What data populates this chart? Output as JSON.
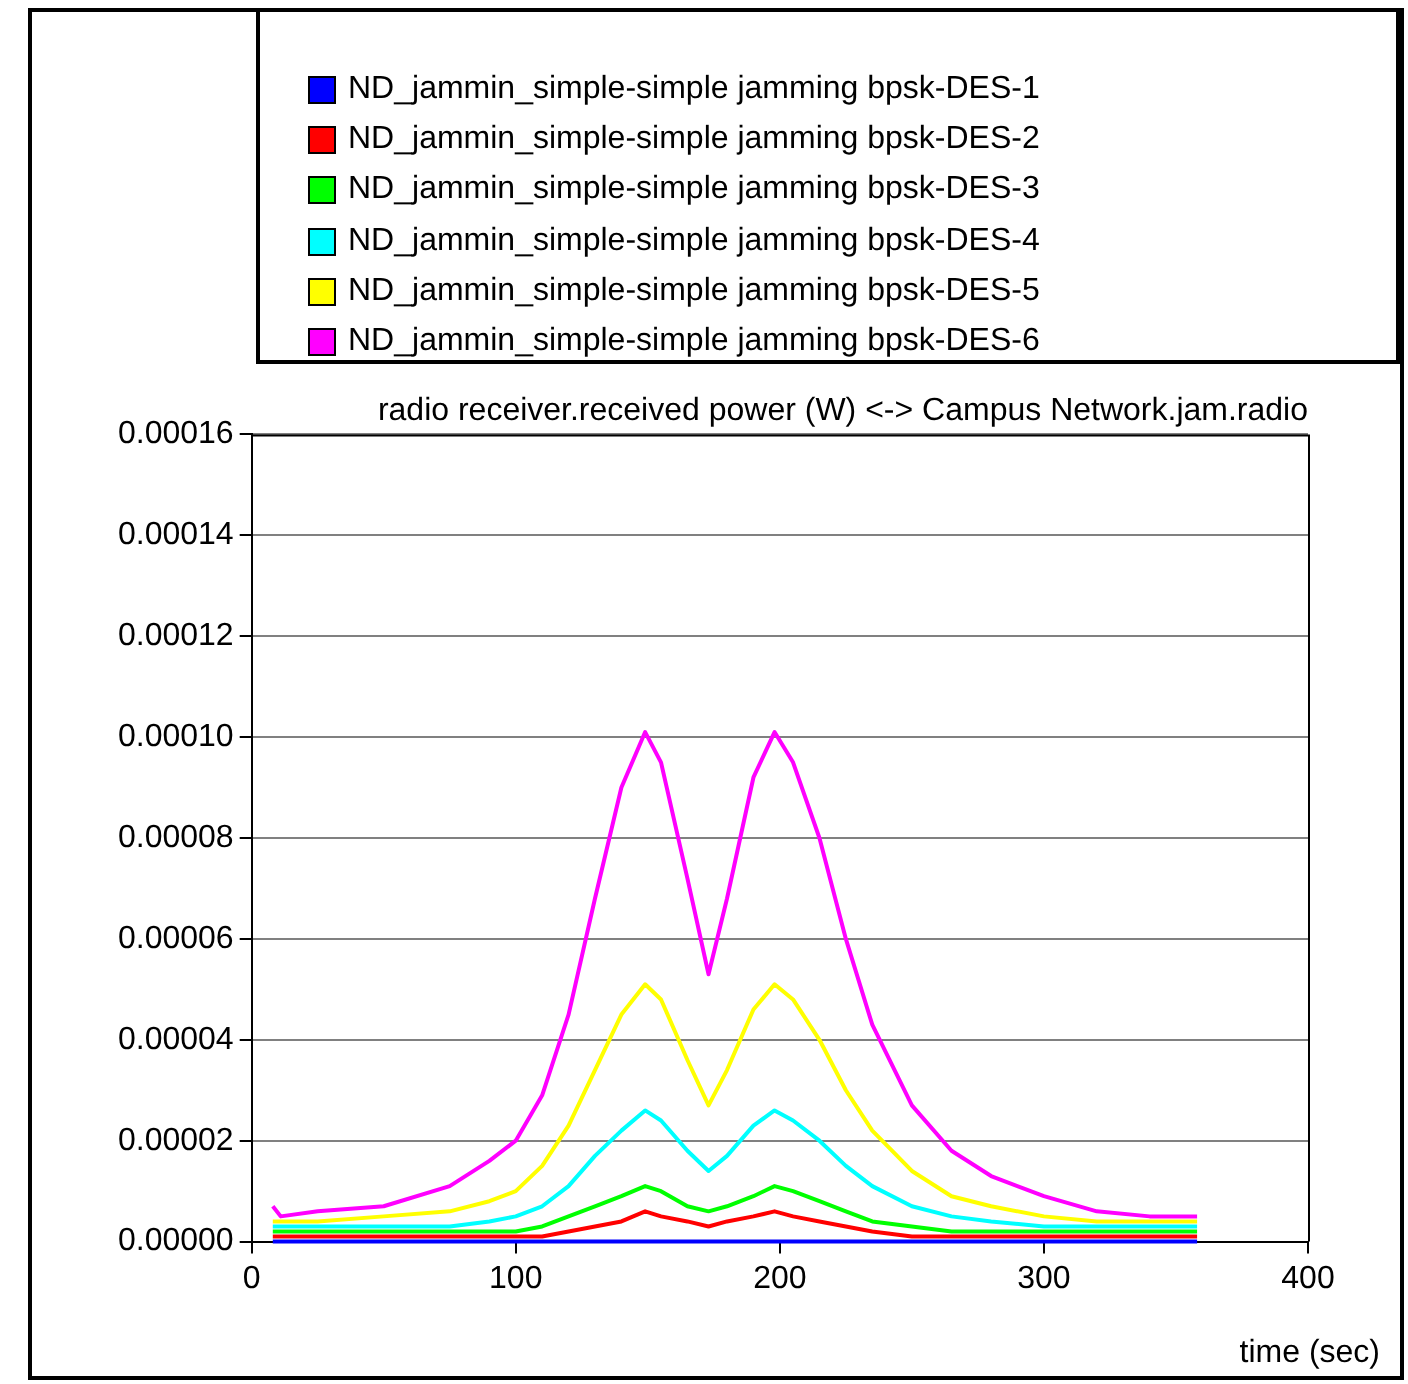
{
  "chart_data": {
    "type": "line",
    "title": "radio receiver.received power (W) <-> Campus Network.jam.radio",
    "xlabel": "time (sec)",
    "x": [
      8,
      11,
      25,
      50,
      75,
      90,
      100,
      110,
      120,
      130,
      140,
      149,
      155,
      165,
      173,
      180,
      190,
      198,
      205,
      215,
      225,
      235,
      250,
      265,
      280,
      300,
      320,
      340,
      358
    ],
    "series": [
      {
        "name": "ND_jammin_simple-simple jamming bpsk-DES-1",
        "color": "#0000ff",
        "values": [
          0,
          0,
          0,
          0,
          0,
          0,
          0,
          0,
          0,
          0,
          0,
          0,
          0,
          0,
          0,
          0,
          0,
          0,
          0,
          0,
          0,
          0,
          0,
          0,
          0,
          0,
          0,
          0,
          0
        ]
      },
      {
        "name": "ND_jammin_simple-simple jamming bpsk-DES-2",
        "color": "#ff0000",
        "values": [
          1e-06,
          1e-06,
          1e-06,
          1e-06,
          1e-06,
          1e-06,
          1e-06,
          1e-06,
          2e-06,
          3e-06,
          4e-06,
          6e-06,
          5e-06,
          4e-06,
          3e-06,
          4e-06,
          5e-06,
          6e-06,
          5e-06,
          4e-06,
          3e-06,
          2e-06,
          1e-06,
          1e-06,
          1e-06,
          1e-06,
          1e-06,
          1e-06,
          1e-06
        ]
      },
      {
        "name": "ND_jammin_simple-simple jamming bpsk-DES-3",
        "color": "#00ff00",
        "values": [
          2e-06,
          2e-06,
          2e-06,
          2e-06,
          2e-06,
          2e-06,
          2e-06,
          3e-06,
          5e-06,
          7e-06,
          9e-06,
          1.1e-05,
          1e-05,
          7e-06,
          6e-06,
          7e-06,
          9e-06,
          1.1e-05,
          1e-05,
          8e-06,
          6e-06,
          4e-06,
          3e-06,
          2e-06,
          2e-06,
          2e-06,
          2e-06,
          2e-06,
          2e-06
        ]
      },
      {
        "name": "ND_jammin_simple-simple jamming bpsk-DES-4",
        "color": "#00ffff",
        "values": [
          3e-06,
          3e-06,
          3e-06,
          3e-06,
          3e-06,
          4e-06,
          5e-06,
          7e-06,
          1.1e-05,
          1.7e-05,
          2.2e-05,
          2.6e-05,
          2.4e-05,
          1.8e-05,
          1.4e-05,
          1.7e-05,
          2.3e-05,
          2.6e-05,
          2.4e-05,
          2e-05,
          1.5e-05,
          1.1e-05,
          7e-06,
          5e-06,
          4e-06,
          3e-06,
          3e-06,
          3e-06,
          3e-06
        ]
      },
      {
        "name": "ND_jammin_simple-simple jamming bpsk-DES-5",
        "color": "#ffff00",
        "values": [
          4e-06,
          4e-06,
          4e-06,
          5e-06,
          6e-06,
          8e-06,
          1e-05,
          1.5e-05,
          2.3e-05,
          3.4e-05,
          4.5e-05,
          5.1e-05,
          4.8e-05,
          3.6e-05,
          2.7e-05,
          3.4e-05,
          4.6e-05,
          5.1e-05,
          4.8e-05,
          4e-05,
          3e-05,
          2.2e-05,
          1.4e-05,
          9e-06,
          7e-06,
          5e-06,
          4e-06,
          4e-06,
          4e-06
        ]
      },
      {
        "name": "ND_jammin_simple-simple jamming bpsk-DES-6",
        "color": "#ff00ff",
        "values": [
          7e-06,
          5e-06,
          6e-06,
          7e-06,
          1.1e-05,
          1.6e-05,
          2e-05,
          2.9e-05,
          4.5e-05,
          6.8e-05,
          9e-05,
          0.000101,
          9.5e-05,
          7.2e-05,
          5.3e-05,
          6.8e-05,
          9.2e-05,
          0.000101,
          9.5e-05,
          8e-05,
          6e-05,
          4.3e-05,
          2.7e-05,
          1.8e-05,
          1.3e-05,
          9e-06,
          6e-06,
          5e-06,
          5e-06
        ]
      }
    ],
    "xlim": [
      0,
      400
    ],
    "xticks": [
      0,
      100,
      200,
      300,
      400
    ],
    "ylim": [
      0,
      0.00016
    ],
    "yticks": [
      {
        "value": 0,
        "label": "0.00000"
      },
      {
        "value": 2e-05,
        "label": "0.00002"
      },
      {
        "value": 4e-05,
        "label": "0.00004"
      },
      {
        "value": 6e-05,
        "label": "0.00006"
      },
      {
        "value": 8e-05,
        "label": "0.00008"
      },
      {
        "value": 0.0001,
        "label": "0.00010"
      },
      {
        "value": 0.00012,
        "label": "0.00012"
      },
      {
        "value": 0.00014,
        "label": "0.00014"
      },
      {
        "value": 0.00016,
        "label": "0.00016"
      }
    ],
    "grid": "y",
    "legend": "top",
    "marker": "none",
    "line_style": "solid"
  }
}
